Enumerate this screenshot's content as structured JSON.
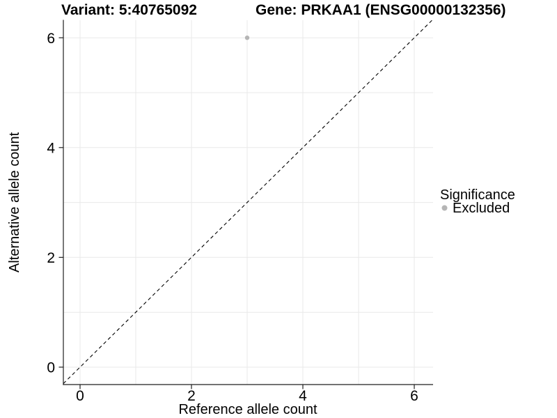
{
  "header": {
    "title_left": "Variant: 5:40765092",
    "title_right": "Gene: PRKAA1 (ENSG00000132356)"
  },
  "chart_data": {
    "type": "scatter",
    "title_left": "Variant: 5:40765092",
    "title_right": "Gene: PRKAA1 (ENSG00000132356)",
    "xlabel": "Reference allele count",
    "ylabel": "Alternative allele count",
    "xlim": [
      -0.3,
      6.33
    ],
    "ylim": [
      -0.32,
      6.32
    ],
    "x_ticks": [
      0,
      2,
      4,
      6
    ],
    "y_ticks": [
      0,
      2,
      4,
      6
    ],
    "grid": "on",
    "gridline_color": "#e9e9e9",
    "axis_color": "#1f1f1f",
    "reference_line": {
      "type": "y=x identity",
      "style": "dashed",
      "color": "#000000"
    },
    "series": [
      {
        "name": "Excluded",
        "color": "#b5b5b5",
        "points": [
          {
            "x": 3,
            "y": 6
          }
        ]
      }
    ],
    "legend": {
      "title": "Significance",
      "position": "right",
      "entries": [
        {
          "label": "Excluded",
          "color": "#b5b5b5"
        }
      ]
    }
  }
}
